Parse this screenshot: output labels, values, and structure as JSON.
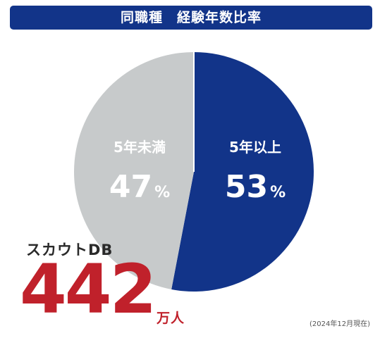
{
  "chart_data": {
    "type": "pie",
    "title": "同職種　経験年数比率",
    "slices": [
      {
        "label": "5年以上",
        "value": 53,
        "value_text": "53",
        "color": "#123489"
      },
      {
        "label": "5年未満",
        "value": 47,
        "value_text": "47",
        "color": "#c7cacb"
      }
    ],
    "unit": "%"
  },
  "scout_db": {
    "label": "スカウトDB",
    "value": "442",
    "unit": "万人"
  },
  "note": "(2024年12月現在)"
}
